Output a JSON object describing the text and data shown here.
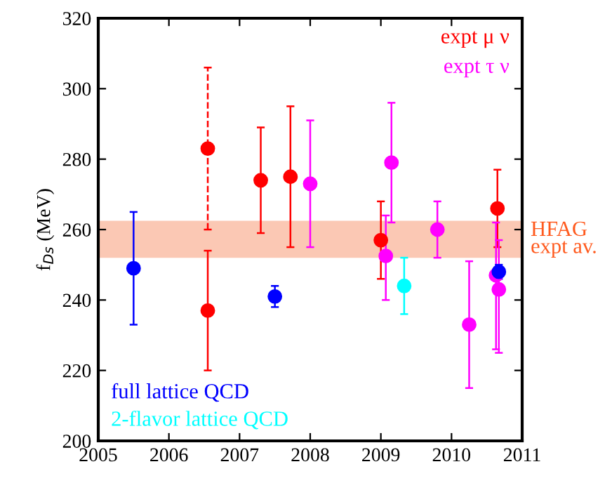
{
  "chart_data": {
    "type": "scatter",
    "ylabel": "f$_{Ds}$ (MeV)",
    "xlim": [
      2005,
      2011
    ],
    "ylim": [
      200,
      320
    ],
    "xticks": [
      2005,
      2006,
      2007,
      2008,
      2009,
      2010,
      2011
    ],
    "yticks": [
      200,
      220,
      240,
      260,
      280,
      300,
      320
    ],
    "grid": false,
    "marker": "circle",
    "series": [
      {
        "name": "expt μ ν",
        "color": "#ff0000",
        "x": [
          2006.55,
          2007.3,
          2007.72,
          2009.0,
          2010.65
        ],
        "values": [
          237,
          274,
          275,
          257,
          266
        ],
        "errors": [
          [
            220,
            254
          ],
          [
            259,
            289
          ],
          [
            255,
            295
          ],
          [
            246,
            268
          ],
          [
            255,
            277
          ]
        ]
      },
      {
        "color": "#ff0000",
        "line_style": "dashed",
        "x": [
          2006.55
        ],
        "values": [
          283
        ],
        "errors": [
          [
            260,
            306
          ]
        ]
      },
      {
        "name": "expt τ ν",
        "color": "#ff00ff",
        "x": [
          2008.0,
          2009.07,
          2009.15,
          2009.8,
          2010.25,
          2010.63,
          2010.67
        ],
        "values": [
          273,
          252.5,
          279,
          260,
          233,
          247,
          243
        ],
        "errors": [
          [
            255,
            291
          ],
          [
            240,
            264
          ],
          [
            262,
            296
          ],
          [
            252,
            268
          ],
          [
            215,
            251
          ],
          [
            226,
            262
          ],
          [
            225,
            257
          ]
        ]
      },
      {
        "name": "full lattice QCD",
        "color": "#0000ff",
        "x": [
          2005.5,
          2007.5,
          2010.67
        ],
        "values": [
          249,
          241,
          248
        ],
        "errors": [
          [
            233,
            265
          ],
          [
            238,
            244
          ],
          [
            246,
            250
          ]
        ]
      },
      {
        "name": "2-flavor lattice QCD",
        "color": "#00ffff",
        "x": [
          2009.33
        ],
        "values": [
          244
        ],
        "errors": [
          [
            236,
            252
          ]
        ]
      }
    ],
    "bands": [
      {
        "axis": "y",
        "from": 252,
        "to": 262.5,
        "label": "HFAG\nexpt av.",
        "color": "#fbc8b4"
      }
    ]
  }
}
